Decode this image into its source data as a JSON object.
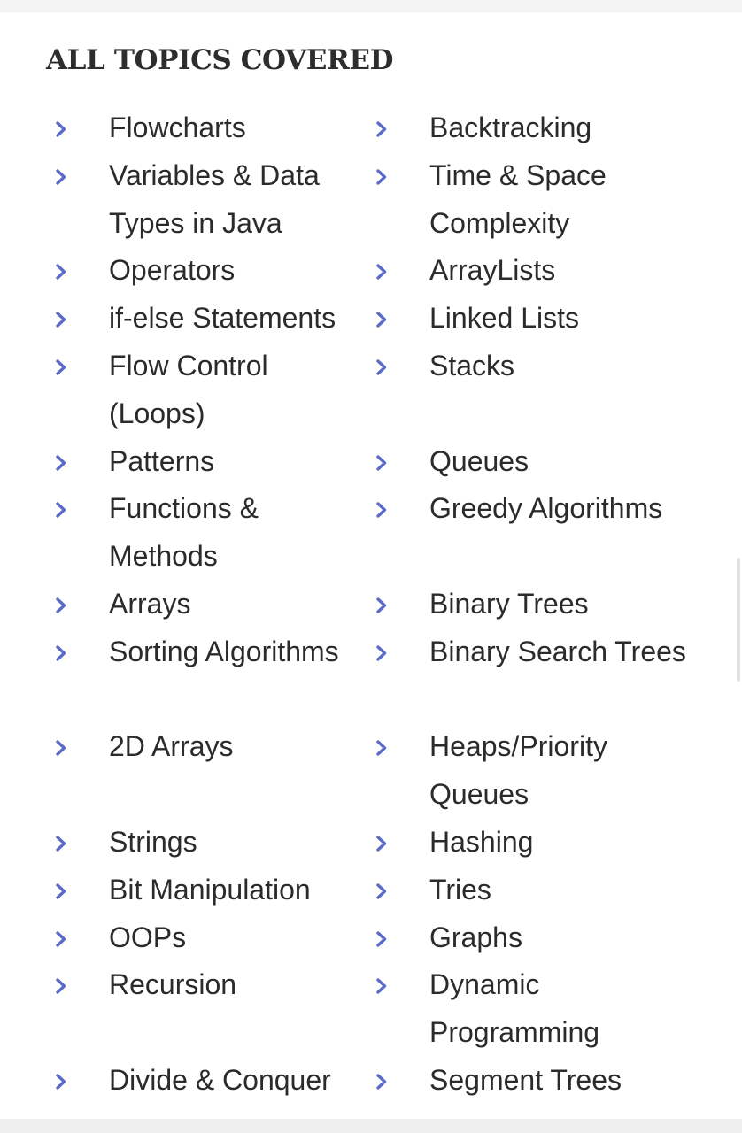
{
  "heading": "ALL TOPICS COVERED",
  "accent_color": "#5a6bc8",
  "bullet_icon": "chevron-right-icon",
  "left_topics": [
    {
      "label": "Flowcharts",
      "span": 1
    },
    {
      "label": "Variables & Data Types in Java",
      "span": 2
    },
    {
      "label": "Operators",
      "span": 1
    },
    {
      "label": "if-else Statements",
      "span": 1
    },
    {
      "label": "Flow Control (Loops)",
      "span": 2
    },
    {
      "label": "Patterns",
      "span": 1
    },
    {
      "label": "Functions & Methods",
      "span": 2
    },
    {
      "label": "Arrays",
      "span": 1
    },
    {
      "label": "Sorting Algorithms",
      "span": 2
    },
    {
      "label": "2D Arrays",
      "span": 2
    },
    {
      "label": "Strings",
      "span": 1
    },
    {
      "label": "Bit Manipulation",
      "span": 1
    },
    {
      "label": "OOPs",
      "span": 1
    },
    {
      "label": "Recursion",
      "span": 2
    },
    {
      "label": "Divide & Conquer",
      "span": 1
    }
  ],
  "right_topics": [
    {
      "label": "Backtracking",
      "span": 1
    },
    {
      "label": "Time & Space Complexity",
      "span": 2
    },
    {
      "label": "ArrayLists",
      "span": 1
    },
    {
      "label": "Linked Lists",
      "span": 1
    },
    {
      "label": "Stacks",
      "span": 2
    },
    {
      "label": "Queues",
      "span": 1
    },
    {
      "label": "Greedy Algorithms",
      "span": 2
    },
    {
      "label": "Binary Trees",
      "span": 1
    },
    {
      "label": "Binary Search Trees",
      "span": 2
    },
    {
      "label": "Heaps/Priority Queues",
      "span": 2
    },
    {
      "label": "Hashing",
      "span": 1
    },
    {
      "label": "Tries",
      "span": 1
    },
    {
      "label": "Graphs",
      "span": 1
    },
    {
      "label": "Dynamic Programming",
      "span": 2
    },
    {
      "label": "Segment Trees",
      "span": 1
    }
  ]
}
